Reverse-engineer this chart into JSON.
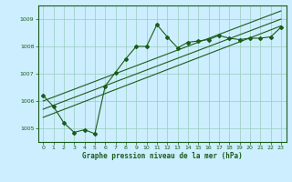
{
  "title": "Graphe pression niveau de la mer (hPa)",
  "background_color": "#cceeff",
  "grid_color": "#99ccbb",
  "line_color": "#1a5c1a",
  "xlim": [
    -0.5,
    23.5
  ],
  "ylim": [
    1004.5,
    1009.5
  ],
  "yticks": [
    1005,
    1006,
    1007,
    1008,
    1009
  ],
  "xticks": [
    0,
    1,
    2,
    3,
    4,
    5,
    6,
    7,
    8,
    9,
    10,
    11,
    12,
    13,
    14,
    15,
    16,
    17,
    18,
    19,
    20,
    21,
    22,
    23
  ],
  "series1_x": [
    0,
    1,
    2,
    3,
    4,
    5,
    6,
    7,
    8,
    9,
    10,
    11,
    12,
    13,
    14,
    15,
    16,
    17,
    18,
    19,
    20,
    21,
    22,
    23
  ],
  "series1_y": [
    1006.2,
    1005.8,
    1005.2,
    1004.85,
    1004.95,
    1004.8,
    1006.55,
    1007.05,
    1007.55,
    1008.0,
    1008.0,
    1008.8,
    1008.35,
    1007.95,
    1008.15,
    1008.2,
    1008.25,
    1008.4,
    1008.3,
    1008.25,
    1008.3,
    1008.3,
    1008.35,
    1008.7
  ],
  "series2_x": [
    0,
    23
  ],
  "series2_y": [
    1005.7,
    1009.0
  ],
  "series3_x": [
    0,
    23
  ],
  "series3_y": [
    1006.0,
    1009.3
  ],
  "series4_x": [
    0,
    23
  ],
  "series4_y": [
    1005.4,
    1008.75
  ]
}
